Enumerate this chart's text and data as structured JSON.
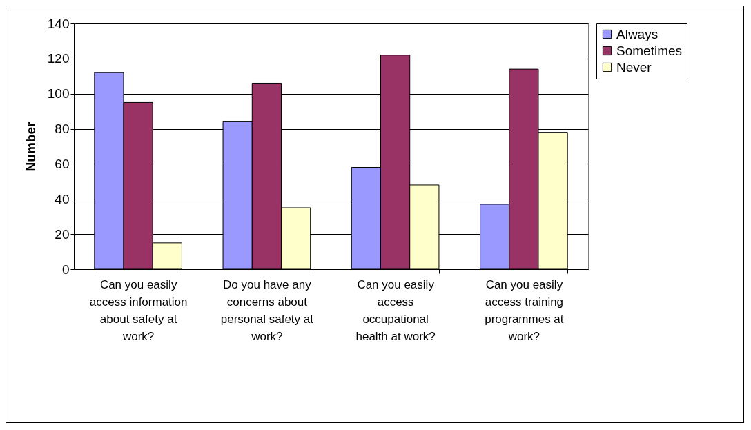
{
  "chart_data": {
    "type": "bar",
    "ylabel": "Number",
    "categories": [
      "Can you easily access information about safety at work?",
      "Do you have any concerns about personal safety at work?",
      "Can you easily access occupational health at work?",
      "Can you easily access training programmes at work?"
    ],
    "series": [
      {
        "name": "Always",
        "color": "#9999ff",
        "values": [
          112,
          84,
          58,
          37
        ]
      },
      {
        "name": "Sometimes",
        "color": "#993366",
        "values": [
          95,
          106,
          122,
          114
        ]
      },
      {
        "name": "Never",
        "color": "#ffffcc",
        "values": [
          15,
          35,
          48,
          78
        ]
      }
    ],
    "ylim": [
      0,
      140
    ],
    "yticks": [
      0,
      20,
      40,
      60,
      80,
      100,
      120,
      140
    ],
    "grid": "y",
    "legend": "right"
  }
}
